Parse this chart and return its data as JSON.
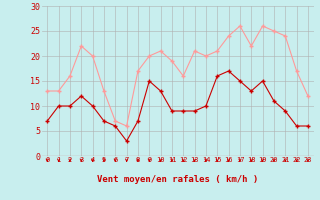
{
  "xlabel": "Vent moyen/en rafales ( km/h )",
  "hours": [
    0,
    1,
    2,
    3,
    4,
    5,
    6,
    7,
    8,
    9,
    10,
    11,
    12,
    13,
    14,
    15,
    16,
    17,
    18,
    19,
    20,
    21,
    22,
    23
  ],
  "wind_avg": [
    7,
    10,
    10,
    12,
    10,
    7,
    6,
    3,
    7,
    15,
    13,
    9,
    9,
    9,
    10,
    16,
    17,
    15,
    13,
    15,
    11,
    9,
    6,
    6
  ],
  "wind_gust": [
    13,
    13,
    16,
    22,
    20,
    13,
    7,
    6,
    17,
    20,
    21,
    19,
    16,
    21,
    20,
    21,
    24,
    26,
    22,
    26,
    25,
    24,
    17,
    12
  ],
  "ylim": [
    0,
    30
  ],
  "yticks": [
    0,
    5,
    10,
    15,
    20,
    25,
    30
  ],
  "bg_color": "#c8eeee",
  "grid_color": "#b0b0b0",
  "avg_color": "#cc0000",
  "gust_color": "#ff9999",
  "arrow_color": "#cc0000"
}
